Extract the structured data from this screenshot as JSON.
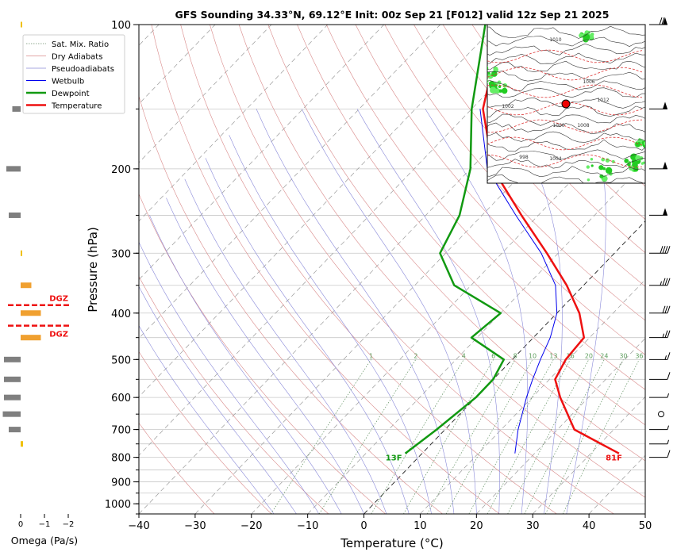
{
  "chart_data": {
    "type": "skew-t sounding",
    "title": "GFS Sounding 34.33°N, 69.12°E Init: 00z Sep 21 [F012] valid 12z Sep 21 2025",
    "xlabel": "Temperature (°C)",
    "ylabel": "Pressure (hPa)",
    "xlim": [
      -40,
      50
    ],
    "ylim": [
      1050,
      100
    ],
    "y_scale": "log",
    "x_ticks": [
      -40,
      -30,
      -20,
      -10,
      0,
      10,
      20,
      30,
      40,
      50
    ],
    "x_tick_labels": [
      "−40",
      "−30",
      "−20",
      "−10",
      "0",
      "10",
      "20",
      "30",
      "40",
      "50"
    ],
    "pressure_ticks": [
      100,
      200,
      300,
      400,
      500,
      600,
      700,
      800,
      900,
      1000
    ],
    "pressure_tick_labels": [
      "100",
      "200",
      "300",
      "400",
      "500",
      "600",
      "700",
      "800",
      "900",
      "1000"
    ],
    "legend": {
      "placement": "top-left",
      "entries": [
        {
          "label": "Sat. Mix. Ratio",
          "color": "#6b8e6b",
          "style": "dotted"
        },
        {
          "label": "Dry Adiabats",
          "color": "#d98a8a",
          "style": "solid"
        },
        {
          "label": "Pseudoadiabats",
          "color": "#8a8ad9",
          "style": "solid"
        },
        {
          "label": "Wetbulb",
          "color": "#0000ee",
          "style": "solid"
        },
        {
          "label": "Dewpoint",
          "color": "#119911",
          "style": "solid"
        },
        {
          "label": "Temperature",
          "color": "#ee1111",
          "style": "solid"
        }
      ]
    },
    "mixing_ratio_labels": [
      "1",
      "2",
      "4",
      "6",
      "8",
      "10",
      "13",
      "16",
      "20",
      "24",
      "30",
      "36"
    ],
    "series": [
      {
        "name": "Temperature",
        "color": "#ee1111",
        "points": [
          [
            785,
            35
          ],
          [
            700,
            23
          ],
          [
            600,
            15
          ],
          [
            550,
            11
          ],
          [
            500,
            9.5
          ],
          [
            450,
            9
          ],
          [
            400,
            4
          ],
          [
            350,
            -3
          ],
          [
            300,
            -12
          ],
          [
            250,
            -23
          ],
          [
            200,
            -36
          ],
          [
            150,
            -48
          ],
          [
            100,
            -59
          ]
        ]
      },
      {
        "name": "Dewpoint",
        "color": "#119911",
        "points": [
          [
            785,
            -3
          ],
          [
            700,
            -1.5
          ],
          [
            600,
            0
          ],
          [
            550,
            0
          ],
          [
            500,
            -1.5
          ],
          [
            450,
            -11
          ],
          [
            400,
            -10
          ],
          [
            350,
            -23
          ],
          [
            300,
            -31
          ],
          [
            250,
            -34
          ],
          [
            200,
            -40
          ],
          [
            150,
            -50
          ],
          [
            100,
            -62
          ]
        ]
      },
      {
        "name": "Wetbulb",
        "color": "#0000ee",
        "points": [
          [
            785,
            16.5
          ],
          [
            700,
            13
          ],
          [
            600,
            9
          ],
          [
            550,
            7
          ],
          [
            500,
            5
          ],
          [
            450,
            3
          ],
          [
            400,
            0
          ],
          [
            350,
            -5
          ],
          [
            300,
            -13
          ],
          [
            250,
            -24
          ],
          [
            200,
            -37
          ],
          [
            150,
            -48.5
          ]
        ]
      }
    ],
    "annotations": [
      {
        "text": "13F",
        "color": "#119911",
        "pressure": 800,
        "temp_c": -3
      },
      {
        "text": "81F",
        "color": "#ee1111",
        "pressure": 800,
        "temp_c": 35
      }
    ],
    "omega": {
      "xlabel": "Omega (Pa/s)",
      "x_ticks": [
        "0",
        "−1",
        "−2"
      ],
      "xlim": [
        0.2,
        -2.2
      ],
      "bars": [
        {
          "pressure": 100,
          "value": -0.05,
          "color": "#f0c000"
        },
        {
          "pressure": 150,
          "value": 0.35,
          "color": "#7f7f7f"
        },
        {
          "pressure": 200,
          "value": 0.6,
          "color": "#7f7f7f"
        },
        {
          "pressure": 250,
          "value": 0.5,
          "color": "#7f7f7f"
        },
        {
          "pressure": 300,
          "value": -0.05,
          "color": "#f0c000"
        },
        {
          "pressure": 350,
          "value": -0.45,
          "color": "#f0a030"
        },
        {
          "pressure": 400,
          "value": -0.85,
          "color": "#f0a030"
        },
        {
          "pressure": 450,
          "value": -0.85,
          "color": "#f0a030"
        },
        {
          "pressure": 500,
          "value": 0.7,
          "color": "#7f7f7f"
        },
        {
          "pressure": 550,
          "value": 0.7,
          "color": "#7f7f7f"
        },
        {
          "pressure": 600,
          "value": 0.7,
          "color": "#7f7f7f"
        },
        {
          "pressure": 650,
          "value": 0.75,
          "color": "#7f7f7f"
        },
        {
          "pressure": 700,
          "value": 0.5,
          "color": "#7f7f7f"
        },
        {
          "pressure": 750,
          "value": -0.1,
          "color": "#f0c000"
        }
      ],
      "dgz": {
        "label": "DGZ",
        "color": "#ee1111",
        "bottom_pressure": 425,
        "top_pressure": 385
      }
    },
    "wind_barbs": [
      {
        "pressure": 100,
        "speed_kt": 70
      },
      {
        "pressure": 150,
        "speed_kt": 50
      },
      {
        "pressure": 200,
        "speed_kt": 50
      },
      {
        "pressure": 250,
        "speed_kt": 50
      },
      {
        "pressure": 300,
        "speed_kt": 40
      },
      {
        "pressure": 350,
        "speed_kt": 35
      },
      {
        "pressure": 400,
        "speed_kt": 30
      },
      {
        "pressure": 450,
        "speed_kt": 25
      },
      {
        "pressure": 500,
        "speed_kt": 15
      },
      {
        "pressure": 550,
        "speed_kt": 10
      },
      {
        "pressure": 600,
        "speed_kt": 5
      },
      {
        "pressure": 650,
        "speed_kt": 0
      },
      {
        "pressure": 700,
        "speed_kt": 5
      },
      {
        "pressure": 750,
        "speed_kt": 5
      },
      {
        "pressure": 800,
        "speed_kt": 10
      }
    ],
    "inset_map": {
      "marker_color": "#ee0000",
      "contour_labels": [
        "1010",
        "1006",
        "1002",
        "1000",
        "998",
        "1004",
        "1008",
        "1012"
      ]
    }
  }
}
